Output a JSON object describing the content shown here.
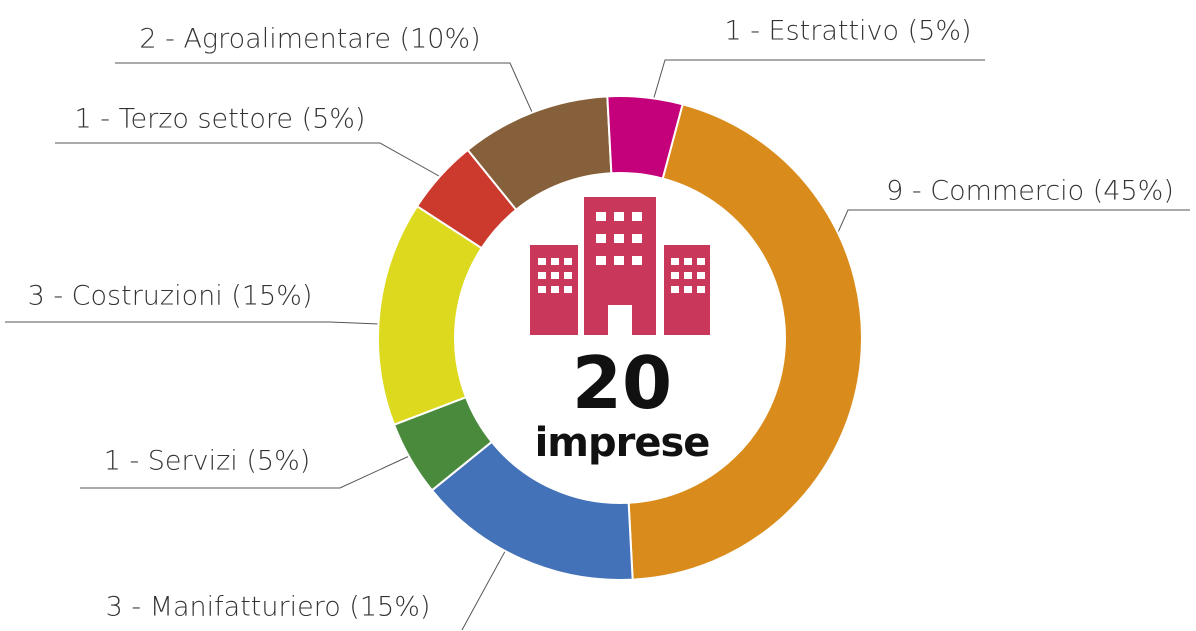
{
  "chart_data": {
    "type": "pie",
    "donut": true,
    "values": [
      9,
      3,
      1,
      3,
      1,
      2,
      1
    ],
    "value_labels": [
      "9 - Commercio (45%)",
      "3 - Manifatturiero (15%)",
      "1 - Servizi (5%)",
      "3 - Costruzioni (15%)",
      "1 - Terzo settore (5%)",
      "2 - Agroalimentare (10%)",
      "1 - Estrattivo (5%)"
    ],
    "colors": [
      "#d98c1c",
      "#4472b8",
      "#4a8a3c",
      "#dcd91e",
      "#cc3a2e",
      "#85603a",
      "#c4007a"
    ],
    "center_value": 20,
    "center_label": "imprese"
  }
}
